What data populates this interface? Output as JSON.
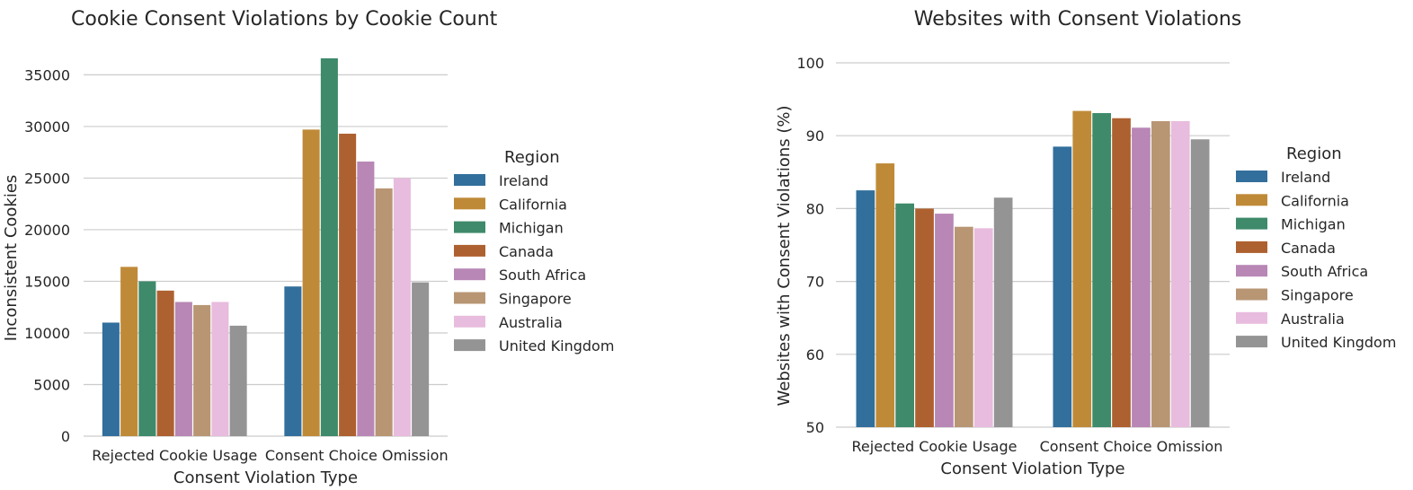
{
  "chart_data": [
    {
      "type": "bar",
      "title": "Cookie Consent Violations by Cookie Count",
      "xlabel": "Consent Violation Type",
      "ylabel": "Inconsistent Cookies",
      "categories": [
        "Rejected Cookie Usage",
        "Consent Choice Omission"
      ],
      "ylim": [
        0,
        36600
      ],
      "yticks": [
        0,
        5000,
        10000,
        15000,
        20000,
        25000,
        30000,
        35000
      ],
      "grid": true,
      "legend_title": "Region",
      "legend_position": "right",
      "series": [
        {
          "name": "Ireland",
          "color": "#326f9c",
          "values": [
            11000,
            14500
          ]
        },
        {
          "name": "California",
          "color": "#bf8a38",
          "values": [
            16400,
            29700
          ]
        },
        {
          "name": "Michigan",
          "color": "#3e8a6a",
          "values": [
            15000,
            36600
          ]
        },
        {
          "name": "Canada",
          "color": "#ae6130",
          "values": [
            14100,
            29300
          ]
        },
        {
          "name": "South Africa",
          "color": "#b887b5",
          "values": [
            13000,
            26600
          ]
        },
        {
          "name": "Singapore",
          "color": "#b89674",
          "values": [
            12700,
            24000
          ]
        },
        {
          "name": "Australia",
          "color": "#e8bcde",
          "values": [
            13000,
            25000
          ]
        },
        {
          "name": "United Kingdom",
          "color": "#949494",
          "values": [
            10700,
            14900
          ]
        }
      ]
    },
    {
      "type": "bar",
      "title": "Websites with Consent Violations",
      "xlabel": "Consent Violation Type",
      "ylabel": "Websites with Consent Violations (%)",
      "categories": [
        "Rejected Cookie Usage",
        "Consent Choice Omission"
      ],
      "ylim": [
        50,
        100
      ],
      "yticks": [
        50,
        60,
        70,
        80,
        90,
        100
      ],
      "grid": true,
      "legend_title": "Region",
      "legend_position": "right",
      "series": [
        {
          "name": "Ireland",
          "color": "#326f9c",
          "values": [
            82.5,
            88.5
          ]
        },
        {
          "name": "California",
          "color": "#bf8a38",
          "values": [
            86.2,
            93.4
          ]
        },
        {
          "name": "Michigan",
          "color": "#3e8a6a",
          "values": [
            80.7,
            93.1
          ]
        },
        {
          "name": "Canada",
          "color": "#ae6130",
          "values": [
            80.0,
            92.4
          ]
        },
        {
          "name": "South Africa",
          "color": "#b887b5",
          "values": [
            79.3,
            91.1
          ]
        },
        {
          "name": "Singapore",
          "color": "#b89674",
          "values": [
            77.5,
            92.0
          ]
        },
        {
          "name": "Australia",
          "color": "#e8bcde",
          "values": [
            77.3,
            92.0
          ]
        },
        {
          "name": "United Kingdom",
          "color": "#949494",
          "values": [
            81.5,
            89.5
          ]
        }
      ]
    }
  ]
}
